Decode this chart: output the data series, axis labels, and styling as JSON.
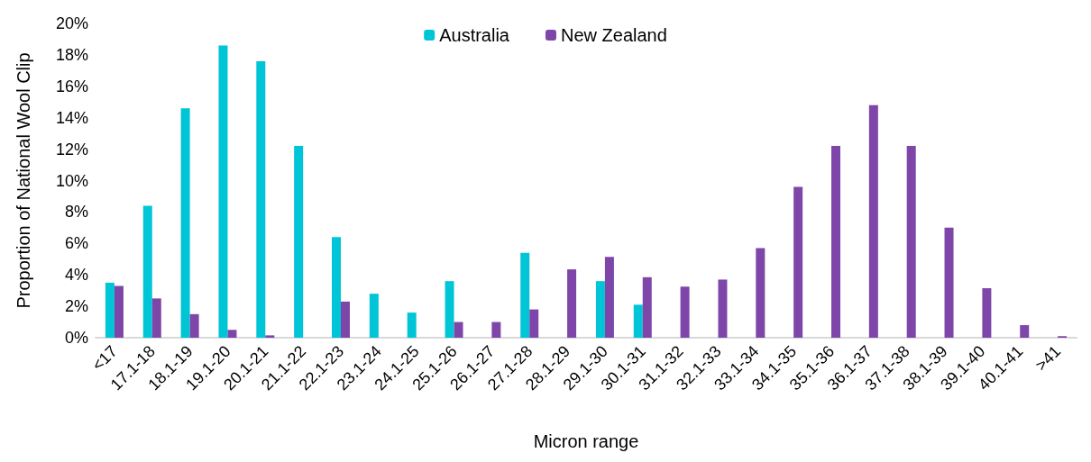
{
  "chart_data": {
    "type": "bar",
    "xlabel": "Micron range",
    "ylabel": "Proportion of National Wool Clip",
    "categories": [
      "<17",
      "17.1-18",
      "18.1-19",
      "19.1-20",
      "20.1-21",
      "21.1-22",
      "22.1-23",
      "23.1-24",
      "24.1-25",
      "25.1-26",
      "26.1-27",
      "27.1-28",
      "28.1-29",
      "29.1-30",
      "30.1-31",
      "31.1-32",
      "32.1-33",
      "33.1-34",
      "34.1-35",
      "35.1-36",
      "36.1-37",
      "37.1-38",
      "38.1-39",
      "39.1-40",
      "40.1-41",
      ">41"
    ],
    "series": [
      {
        "name": "Australia",
        "color": "#00c5d7",
        "values": [
          3.5,
          8.4,
          14.6,
          18.6,
          17.6,
          12.2,
          6.4,
          2.8,
          1.6,
          3.6,
          0,
          5.4,
          0,
          3.6,
          2.1,
          0,
          0,
          0,
          0,
          0,
          0,
          0,
          0,
          0,
          0,
          0
        ]
      },
      {
        "name": "New Zealand",
        "color": "#7e46a8",
        "values": [
          3.3,
          2.5,
          1.5,
          0.5,
          0.15,
          0,
          2.3,
          0,
          0,
          1.0,
          1.0,
          1.8,
          4.35,
          5.15,
          3.85,
          3.25,
          3.7,
          5.7,
          9.6,
          12.2,
          14.8,
          12.2,
          7.0,
          3.15,
          0.8,
          0.1
        ]
      }
    ],
    "ylim": [
      0,
      20
    ],
    "yticks": [
      {
        "value": 0,
        "label": "0%"
      },
      {
        "value": 2,
        "label": "2%"
      },
      {
        "value": 4,
        "label": "4%"
      },
      {
        "value": 6,
        "label": "6%"
      },
      {
        "value": 8,
        "label": "8%"
      },
      {
        "value": 10,
        "label": "10%"
      },
      {
        "value": 12,
        "label": "12%"
      },
      {
        "value": 14,
        "label": "14%"
      },
      {
        "value": 16,
        "label": "16%"
      },
      {
        "value": 18,
        "label": "18%"
      },
      {
        "value": 20,
        "label": "20%"
      }
    ],
    "grid": false,
    "legend": "top"
  }
}
